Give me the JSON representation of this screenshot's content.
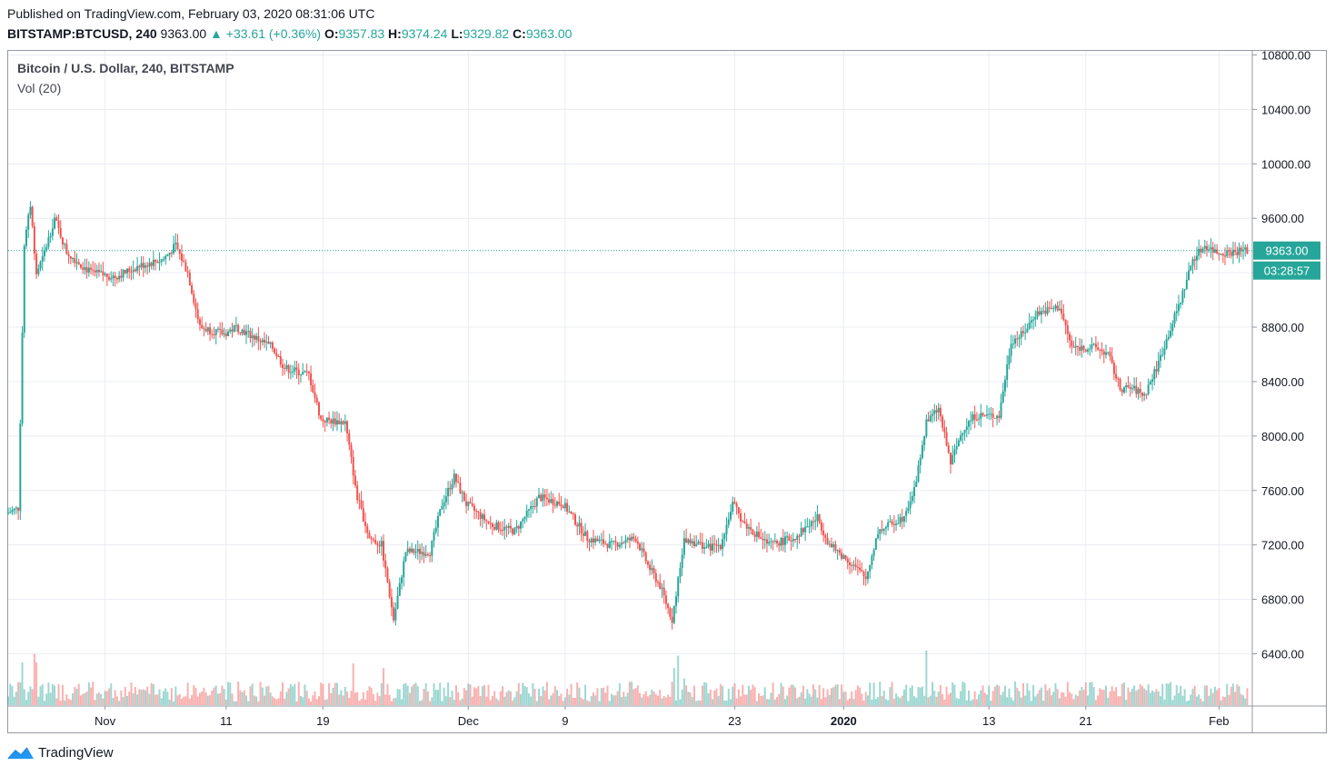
{
  "header": {
    "published": "Published on TradingView.com, February 03, 2020 08:31:06 UTC",
    "symbol": "BITSTAMP:BTCUSD, 240",
    "last": "9363.00",
    "change": "+33.61 (+0.36%)",
    "o_label": "O:",
    "o_value": "9357.83",
    "h_label": "H:",
    "h_value": "9374.24",
    "l_label": "L:",
    "l_value": "9329.82",
    "c_label": "C:",
    "c_value": "9363.00"
  },
  "legend": {
    "series": "Bitcoin / U.S. Dollar, 240, BITSTAMP",
    "volume": "Vol (20)"
  },
  "price_tag": {
    "price": "9363.00",
    "countdown": "03:28:57"
  },
  "footer": {
    "brand": "TradingView"
  },
  "colors": {
    "up": "#26a69a",
    "down": "#ef5350",
    "grid": "#e9ecf2",
    "axis": "#9598a1",
    "tag": "#26a69a"
  },
  "chart_data": {
    "type": "candlestick",
    "interval": "240",
    "y_axis": {
      "ticks": [
        6400,
        6800,
        7200,
        7600,
        8000,
        8400,
        8800,
        9200,
        9600,
        10000,
        10400,
        10800
      ],
      "range": [
        6130,
        10880
      ],
      "side": "right"
    },
    "x_axis": {
      "labels": [
        "Nov",
        "11",
        "19",
        "Dec",
        "9",
        "23",
        "2020",
        "13",
        "21",
        "Feb"
      ],
      "bold": [
        "2020"
      ]
    },
    "last_price": 9363.0,
    "grid": true,
    "price_path": [
      [
        "10/24",
        7430
      ],
      [
        "10/25",
        7470
      ],
      [
        "10/25 12h",
        9400
      ],
      [
        "10/26",
        9700
      ],
      [
        "10/26 12h",
        9200
      ],
      [
        "10/27",
        9300
      ],
      [
        "10/28",
        9600
      ],
      [
        "10/29",
        9350
      ],
      [
        "10/31",
        9200
      ],
      [
        "11/2",
        9170
      ],
      [
        "11/4",
        9250
      ],
      [
        "11/6",
        9300
      ],
      [
        "11/7",
        9400
      ],
      [
        "11/8",
        9200
      ],
      [
        "11/9",
        8800
      ],
      [
        "11/11",
        8750
      ],
      [
        "11/12",
        8800
      ],
      [
        "11/15",
        8650
      ],
      [
        "11/16",
        8500
      ],
      [
        "11/18",
        8450
      ],
      [
        "11/19",
        8120
      ],
      [
        "11/21",
        8100
      ],
      [
        "11/22",
        7550
      ],
      [
        "11/23",
        7250
      ],
      [
        "11/24",
        7200
      ],
      [
        "11/25",
        6650
      ],
      [
        "11/26",
        7150
      ],
      [
        "11/28",
        7150
      ],
      [
        "11/29",
        7500
      ],
      [
        "11/30",
        7700
      ],
      [
        "12/1",
        7500
      ],
      [
        "12/3",
        7350
      ],
      [
        "12/5",
        7300
      ],
      [
        "12/7",
        7550
      ],
      [
        "12/9",
        7500
      ],
      [
        "12/11",
        7250
      ],
      [
        "12/13",
        7200
      ],
      [
        "12/15",
        7250
      ],
      [
        "12/16",
        7050
      ],
      [
        "12/17",
        6900
      ],
      [
        "12/18",
        6650
      ],
      [
        "12/19",
        7250
      ],
      [
        "12/21",
        7180
      ],
      [
        "12/22",
        7200
      ],
      [
        "12/23",
        7500
      ],
      [
        "12/24",
        7350
      ],
      [
        "12/26",
        7200
      ],
      [
        "12/28",
        7250
      ],
      [
        "12/30",
        7400
      ],
      [
        "12/31",
        7200
      ],
      [
        "1/2",
        7050
      ],
      [
        "1/3",
        6950
      ],
      [
        "1/4",
        7300
      ],
      [
        "1/6",
        7400
      ],
      [
        "1/7",
        7600
      ],
      [
        "1/8",
        8100
      ],
      [
        "1/9",
        8200
      ],
      [
        "1/10",
        7800
      ],
      [
        "1/11",
        8050
      ],
      [
        "1/12",
        8150
      ],
      [
        "1/14",
        8150
      ],
      [
        "1/15",
        8700
      ],
      [
        "1/16",
        8750
      ],
      [
        "1/17",
        8900
      ],
      [
        "1/19",
        8950
      ],
      [
        "1/20",
        8650
      ],
      [
        "1/22",
        8650
      ],
      [
        "1/23",
        8600
      ],
      [
        "1/24",
        8350
      ],
      [
        "1/25",
        8350
      ],
      [
        "1/26",
        8300
      ],
      [
        "1/27",
        8500
      ],
      [
        "1/29",
        9000
      ],
      [
        "1/30",
        9300
      ],
      [
        "1/31",
        9400
      ],
      [
        "2/1",
        9350
      ],
      [
        "2/2",
        9350
      ],
      [
        "2/3",
        9363
      ]
    ],
    "volume_series": "Vol (20)"
  }
}
